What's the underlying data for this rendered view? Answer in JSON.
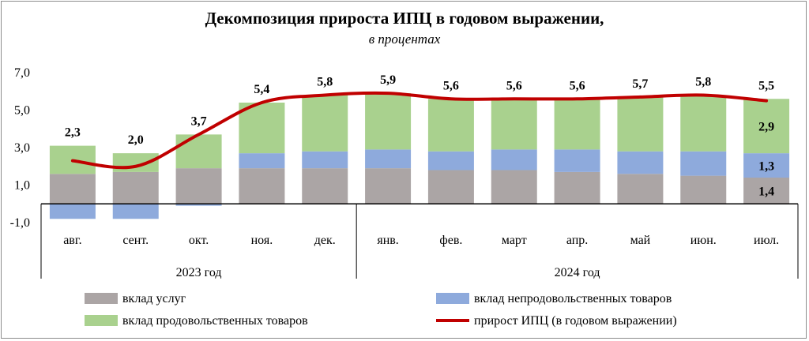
{
  "chart_data": {
    "type": "bar",
    "stacked": true,
    "title": "Декомпозиция прироста ИПЦ  в годовом выражении,",
    "subtitle": "в процентах",
    "categories": [
      "авг.",
      "сент.",
      "окт.",
      "ноя.",
      "дек.",
      "янв.",
      "фев.",
      "март",
      "апр.",
      "май",
      "июн.",
      "июл."
    ],
    "category_groups": [
      {
        "label": "2023 год",
        "count": 5
      },
      {
        "label": "2024 год",
        "count": 7
      }
    ],
    "y_ticks": [
      "-1,0",
      "1,0",
      "3,0",
      "5,0",
      "7,0"
    ],
    "ylim": [
      -1.0,
      7.0
    ],
    "series": [
      {
        "name": "вклад услуг",
        "kind": "bar",
        "color": "#aba5a5",
        "values": [
          1.6,
          1.7,
          1.9,
          1.9,
          1.9,
          1.9,
          1.8,
          1.8,
          1.7,
          1.6,
          1.5,
          1.4
        ]
      },
      {
        "name": "вклад непродовольственных товаров",
        "kind": "bar",
        "color": "#8eaadc",
        "values": [
          -0.8,
          -0.8,
          -0.1,
          0.8,
          0.9,
          1.0,
          1.0,
          1.1,
          1.2,
          1.2,
          1.3,
          1.3
        ]
      },
      {
        "name": "вклад продовольственных товаров",
        "kind": "bar",
        "color": "#a9d18e",
        "values": [
          1.5,
          1.0,
          1.8,
          2.7,
          3.0,
          3.0,
          2.8,
          2.7,
          2.7,
          2.9,
          3.0,
          2.9
        ]
      },
      {
        "name": "прирост ИПЦ (в годовом выражении)",
        "kind": "line",
        "color": "#c00000",
        "values": [
          2.3,
          2.0,
          3.7,
          5.4,
          5.8,
          5.9,
          5.6,
          5.6,
          5.6,
          5.7,
          5.8,
          5.5
        ]
      }
    ],
    "total_labels": [
      "2,3",
      "2,0",
      "3,7",
      "5,4",
      "5,8",
      "5,9",
      "5,6",
      "5,6",
      "5,6",
      "5,7",
      "5,8",
      "5,5"
    ],
    "segment_labels_last": {
      "services": "1,4",
      "nonfood": "1,3",
      "food": "2,9"
    },
    "legend_position": "bottom",
    "grid": false
  }
}
